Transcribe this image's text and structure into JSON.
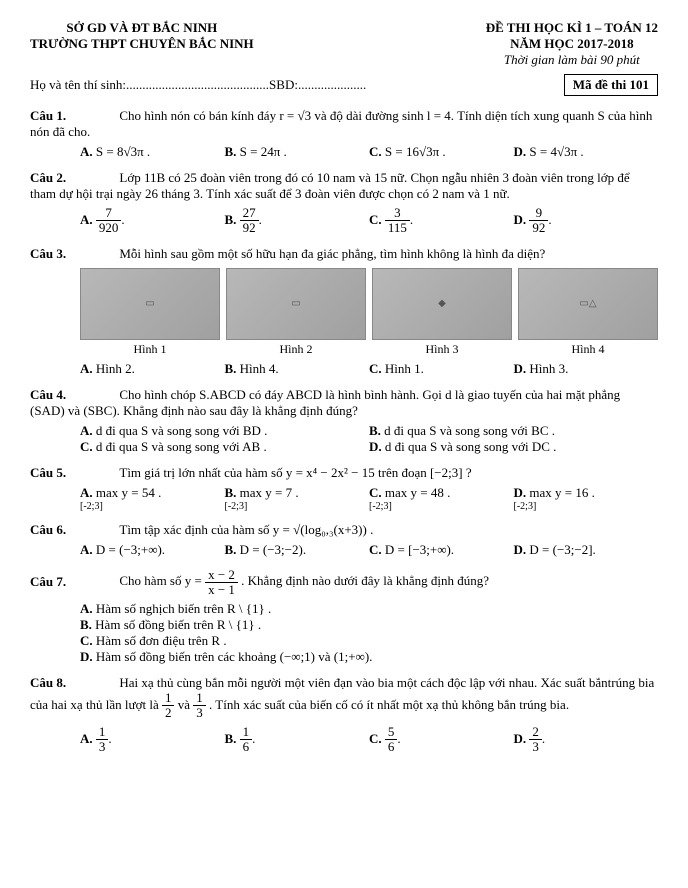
{
  "header": {
    "left_line1": "SỞ GD VÀ ĐT BẮC NINH",
    "left_line2": "TRƯỜNG THPT CHUYÊN BẮC NINH",
    "right_line1": "ĐỀ THI HỌC KÌ 1 – TOÁN 12",
    "right_line2": "NĂM HỌC 2017-2018",
    "right_line3": "Thời gian làm bài 90 phút"
  },
  "info": {
    "name_label": "Họ và tên thí sinh:............................................SBD:.....................",
    "exam_code": "Mã đề thi 101"
  },
  "q1": {
    "label": "Câu 1.",
    "text": "Cho hình nón có bán kính đáy r = √3 và độ dài đường sinh l = 4. Tính diện tích xung quanh S của hình nón đã cho.",
    "A": "S = 8√3π .",
    "B": "S = 24π .",
    "C": "S = 16√3π .",
    "D": "S = 4√3π ."
  },
  "q2": {
    "label": "Câu 2.",
    "text": "Lớp 11B có 25 đoàn viên trong đó có 10 nam và 15 nữ. Chọn ngẫu nhiên 3 đoàn viên trong lớp để tham dự hội trại ngày 26 tháng 3. Tính xác suất để 3 đoàn viên được chọn có 2 nam và 1 nữ.",
    "A_n": "7",
    "A_d": "920",
    "B_n": "27",
    "B_d": "92",
    "C_n": "3",
    "C_d": "115",
    "D_n": "9",
    "D_d": "92"
  },
  "q3": {
    "label": "Câu 3.",
    "text": "Mỗi hình sau gồm một số hữu hạn đa giác phẳng, tìm hình không là hình đa diện?",
    "fig1": "Hình 1",
    "fig2": "Hình 2",
    "fig3": "Hình 3",
    "fig4": "Hình 4",
    "A": "Hình 2.",
    "B": "Hình 4.",
    "C": "Hình 1.",
    "D": "Hình 3."
  },
  "q4": {
    "label": "Câu 4.",
    "text": "Cho hình chóp S.ABCD có đáy ABCD là hình bình hành. Gọi d là giao tuyến của hai mặt phẳng (SAD) và (SBC). Khẳng định nào sau đây là khẳng định đúng?",
    "A": "d đi qua S và song song với BD .",
    "B": "d đi qua S và song song với BC .",
    "C": "d đi qua S và song song với AB .",
    "D": "d đi qua S và song song với DC ."
  },
  "q5": {
    "label": "Câu 5.",
    "text": "Tìm giá trị lớn nhất của hàm số y = x⁴ − 2x² − 15 trên đoạn [−2;3] ?",
    "A": "max y = 54 .",
    "An": "[-2;3]",
    "B": "max y = 7 .",
    "Bn": "[-2;3]",
    "C": "max y = 48 .",
    "Cn": "[-2;3]",
    "D": "max y = 16 .",
    "Dn": "[-2;3]"
  },
  "q6": {
    "label": "Câu 6.",
    "text": "Tìm tập xác định của hàm số y = √(log₀,₃(x+3)) .",
    "A": "D = (−3;+∞).",
    "B": "D = (−3;−2).",
    "C": "D = [−3;+∞).",
    "D": "D = (−3;−2]."
  },
  "q7": {
    "label": "Câu 7.",
    "text_prefix": "Cho hàm số y = ",
    "frac_n": "x − 2",
    "frac_d": "x − 1",
    "text_suffix": ". Khẳng định nào dưới đây là khẳng định đúng?",
    "A": "Hàm số nghịch biến trên R \\ {1} .",
    "B": "Hàm số đồng biến trên R \\ {1} .",
    "C": "Hàm số đơn điệu trên R .",
    "D": "Hàm số đồng biến trên các khoảng (−∞;1) và (1;+∞)."
  },
  "q8": {
    "label": "Câu 8.",
    "text_prefix": "Hai xạ thủ cùng bắn mỗi người một viên đạn vào bia một cách độc lập với nhau. Xác suất bắntrúng bia của hai xạ thủ lần lượt là ",
    "f1n": "1",
    "f1d": "2",
    "and": " và ",
    "f2n": "1",
    "f2d": "3",
    "text_suffix": ". Tính xác suất của biến cố có ít nhất một xạ thủ không bắn trúng bia.",
    "A_n": "1",
    "A_d": "3",
    "B_n": "1",
    "B_d": "6",
    "C_n": "5",
    "C_d": "6",
    "D_n": "2",
    "D_d": "3"
  }
}
